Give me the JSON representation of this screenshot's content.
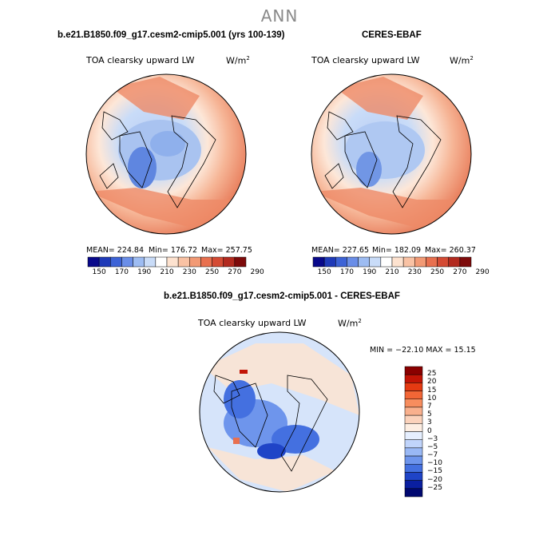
{
  "title": "ANN",
  "panels": [
    {
      "title": "b.e21.B1850.f09_g17.cesm2-cmip5.001 (yrs 100-139)",
      "variable": "TOA clearsky upward LW",
      "units": "W/m",
      "units_exp": "2",
      "stats": {
        "mean": "MEAN= 224.84",
        "min": "Min= 176.72",
        "max": "Max= 257.75"
      }
    },
    {
      "title": "CERES-EBAF",
      "variable": "TOA clearsky upward LW",
      "units": "W/m",
      "units_exp": "2",
      "stats": {
        "mean": "MEAN= 227.65",
        "min": "Min= 182.09",
        "max": "Max= 260.37"
      }
    },
    {
      "title": "b.e21.B1850.f09_g17.cesm2-cmip5.001 - CERES-EBAF",
      "variable": "TOA clearsky upward LW",
      "units": "W/m",
      "units_exp": "2",
      "stats": {
        "text": "MIN = −22.10 MAX =  15.15"
      }
    }
  ],
  "colorbar_abs": {
    "ticks": [
      "150",
      "170",
      "190",
      "210",
      "230",
      "250",
      "270",
      "290"
    ],
    "colors": [
      "#08088a",
      "#1f3ab8",
      "#3d63d6",
      "#6a8ee8",
      "#9dbcf2",
      "#c9dcf8",
      "#ffffff",
      "#fde2cf",
      "#f9c2a4",
      "#f29a75",
      "#e8704f",
      "#d44b34",
      "#b22a1f",
      "#7d0a0a"
    ]
  },
  "colorbar_diff": {
    "labels": [
      "25",
      "20",
      "15",
      "10",
      "7",
      "5",
      "3",
      "0",
      "−3",
      "−5",
      "−7",
      "−10",
      "−15",
      "−20",
      "−25"
    ],
    "colors": [
      "#8a0000",
      "#c21406",
      "#e53a12",
      "#f26636",
      "#f78d5e",
      "#f9b08d",
      "#fbd2bb",
      "#fdeee2",
      "#e6efff",
      "#c0d4fb",
      "#99b8f5",
      "#6e95ec",
      "#4470e0",
      "#1f44c7",
      "#0a1fa0",
      "#000870"
    ]
  },
  "chart_data": [
    {
      "type": "heatmap",
      "title": "b.e21.B1850.f09_g17.cesm2-cmip5.001 (yrs 100-139)",
      "variable": "TOA clearsky upward LW",
      "units": "W/m^2",
      "projection": "north polar stereographic",
      "mean": 224.84,
      "min": 176.72,
      "max": 257.75,
      "levels": [
        150,
        160,
        170,
        180,
        190,
        200,
        210,
        220,
        230,
        240,
        250,
        260,
        270,
        280,
        290
      ]
    },
    {
      "type": "heatmap",
      "title": "CERES-EBAF",
      "variable": "TOA clearsky upward LW",
      "units": "W/m^2",
      "projection": "north polar stereographic",
      "mean": 227.65,
      "min": 182.09,
      "max": 260.37,
      "levels": [
        150,
        160,
        170,
        180,
        190,
        200,
        210,
        220,
        230,
        240,
        250,
        260,
        270,
        280,
        290
      ]
    },
    {
      "type": "heatmap",
      "title": "b.e21.B1850.f09_g17.cesm2-cmip5.001 - CERES-EBAF",
      "variable": "TOA clearsky upward LW",
      "units": "W/m^2",
      "projection": "north polar stereographic",
      "min": -22.1,
      "max": 15.15,
      "levels": [
        -25,
        -20,
        -15,
        -10,
        -7,
        -5,
        -3,
        0,
        3,
        5,
        7,
        10,
        15,
        20,
        25
      ]
    }
  ]
}
